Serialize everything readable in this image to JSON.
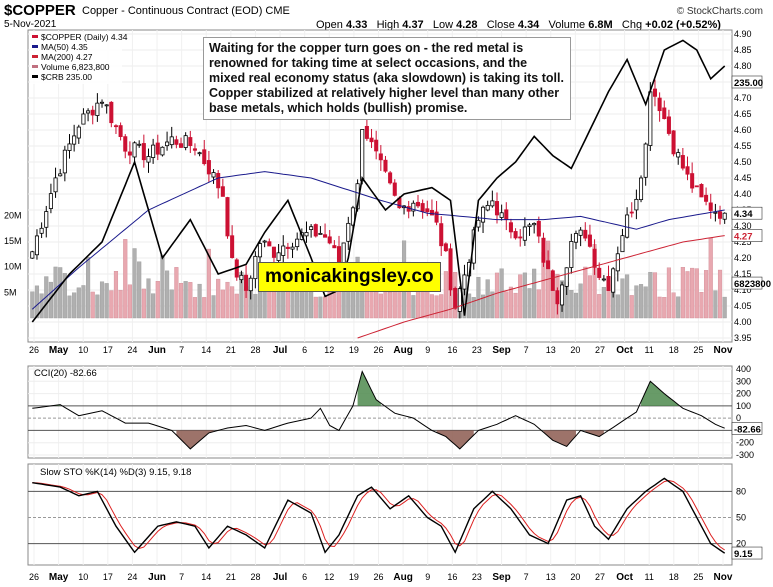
{
  "header": {
    "symbol": "$COPPER",
    "description": "Copper - Continuous Contract (EOD) CME",
    "date": "5-Nov-2021",
    "credit": "© StockCharts.com",
    "open_label": "Open",
    "open": "4.33",
    "high_label": "High",
    "high": "4.37",
    "low_label": "Low",
    "low": "4.28",
    "close_label": "Close",
    "close": "4.34",
    "volume_label": "Volume",
    "volume": "6.8M",
    "chg_label": "Chg",
    "chg": "+0.02 (+0.52%)"
  },
  "legend": {
    "copper": "$COPPER (Daily) 4.34",
    "ma50": "MA(50) 4.35",
    "ma200": "MA(200) 4.27",
    "volume": "Volume 6,823,800",
    "crb": "$CRB 235.00"
  },
  "annotation": "Waiting for the copper turn goes on - the red metal is renowned for taking time at select occasions, and the mixed real economy status (aka slowdown) is taking its toll. Copper stabilized at relatively higher level than many other base metals, which holds (bullish) promise.",
  "watermark": "monicakingsley.co",
  "colors": {
    "up": "#000000",
    "down": "#cc1133",
    "ma50": "#1a1a8c",
    "ma200": "#cc2233",
    "crb": "#000000",
    "vol_up": "#b0b0b0",
    "vol_down": "#e8a8b0",
    "cci_fill": "#4d8a4d",
    "cci_neg_fill": "#8c5a50",
    "sto_k": "#000000",
    "sto_d": "#dd2222"
  },
  "chart_data": [
    {
      "type": "candlestick",
      "title": "$COPPER (Daily) 4.34",
      "y_range": [
        3.95,
        4.9
      ],
      "y_ticks": [
        "4.90",
        "4.85",
        "4.80",
        "4.75",
        "4.70",
        "4.65",
        "4.60",
        "4.55",
        "4.50",
        "4.45",
        "4.40",
        "4.35",
        "4.30",
        "4.25",
        "4.20",
        "4.15",
        "4.10",
        "4.05",
        "4.00",
        "3.95"
      ],
      "last_labels": {
        "close": "4.34",
        "ma200": "4.27",
        "crb": "235.00"
      },
      "x_labels": [
        "26",
        "May",
        "10",
        "17",
        "24",
        "Jun",
        "7",
        "14",
        "21",
        "28",
        "Jul",
        "6",
        "12",
        "19",
        "26",
        "Aug",
        "9",
        "16",
        "23",
        "Sep",
        "7",
        "13",
        "20",
        "27",
        "Oct",
        "11",
        "18",
        "25",
        "Nov"
      ],
      "close_anchors": [
        [
          0,
          4.22
        ],
        [
          5,
          4.45
        ],
        [
          10,
          4.62
        ],
        [
          15,
          4.7
        ],
        [
          20,
          4.55
        ],
        [
          25,
          4.52
        ],
        [
          30,
          4.57
        ],
        [
          35,
          4.55
        ],
        [
          38,
          4.48
        ],
        [
          41,
          4.4
        ],
        [
          43,
          4.18
        ],
        [
          46,
          4.1
        ],
        [
          49,
          4.25
        ],
        [
          52,
          4.22
        ],
        [
          55,
          4.25
        ],
        [
          58,
          4.27
        ],
        [
          62,
          4.28
        ],
        [
          64,
          4.25
        ],
        [
          66,
          4.18
        ],
        [
          68,
          4.32
        ],
        [
          70,
          4.42
        ],
        [
          71,
          4.62
        ],
        [
          73,
          4.55
        ],
        [
          76,
          4.45
        ],
        [
          79,
          4.35
        ],
        [
          82,
          4.38
        ],
        [
          85,
          4.35
        ],
        [
          87,
          4.3
        ],
        [
          89,
          4.2
        ],
        [
          91,
          4.05
        ],
        [
          93,
          4.15
        ],
        [
          96,
          4.32
        ],
        [
          99,
          4.38
        ],
        [
          102,
          4.3
        ],
        [
          105,
          4.28
        ],
        [
          108,
          4.3
        ],
        [
          111,
          4.15
        ],
        [
          113,
          4.08
        ],
        [
          116,
          4.25
        ],
        [
          119,
          4.28
        ],
        [
          122,
          4.15
        ],
        [
          124,
          4.12
        ],
        [
          127,
          4.28
        ],
        [
          130,
          4.4
        ],
        [
          132,
          4.55
        ],
        [
          133,
          4.74
        ],
        [
          135,
          4.68
        ],
        [
          138,
          4.55
        ],
        [
          141,
          4.45
        ],
        [
          144,
          4.38
        ],
        [
          147,
          4.35
        ],
        [
          149,
          4.34
        ]
      ],
      "ma50_anchors": [
        [
          0,
          4.04
        ],
        [
          10,
          4.17
        ],
        [
          25,
          4.35
        ],
        [
          40,
          4.45
        ],
        [
          50,
          4.47
        ],
        [
          60,
          4.45
        ],
        [
          75,
          4.38
        ],
        [
          85,
          4.34
        ],
        [
          100,
          4.32
        ],
        [
          110,
          4.32
        ],
        [
          118,
          4.33
        ],
        [
          124,
          4.31
        ],
        [
          130,
          4.29
        ],
        [
          137,
          4.32
        ],
        [
          149,
          4.35
        ]
      ],
      "ma200_anchors": [
        [
          70,
          3.95
        ],
        [
          80,
          4.0
        ],
        [
          90,
          4.04
        ],
        [
          100,
          4.09
        ],
        [
          110,
          4.13
        ],
        [
          120,
          4.17
        ],
        [
          130,
          4.21
        ],
        [
          140,
          4.25
        ],
        [
          149,
          4.27
        ]
      ],
      "crb_anchors": [
        [
          0,
          4.0
        ],
        [
          8,
          4.15
        ],
        [
          15,
          4.25
        ],
        [
          22,
          4.5
        ],
        [
          28,
          4.2
        ],
        [
          34,
          4.32
        ],
        [
          40,
          4.15
        ],
        [
          46,
          4.18
        ],
        [
          50,
          4.28
        ],
        [
          55,
          4.38
        ],
        [
          60,
          4.2
        ],
        [
          63,
          4.08
        ],
        [
          66,
          4.1
        ],
        [
          68,
          4.2
        ],
        [
          71,
          4.45
        ],
        [
          76,
          4.35
        ],
        [
          80,
          4.4
        ],
        [
          86,
          4.42
        ],
        [
          90,
          4.38
        ],
        [
          93,
          4.02
        ],
        [
          96,
          4.38
        ],
        [
          100,
          4.45
        ],
        [
          104,
          4.5
        ],
        [
          108,
          4.58
        ],
        [
          112,
          4.52
        ],
        [
          116,
          4.48
        ],
        [
          120,
          4.6
        ],
        [
          124,
          4.72
        ],
        [
          128,
          4.82
        ],
        [
          132,
          4.68
        ],
        [
          136,
          4.85
        ],
        [
          140,
          4.88
        ],
        [
          143,
          4.85
        ],
        [
          146,
          4.76
        ],
        [
          149,
          4.8
        ]
      ]
    },
    {
      "type": "bar",
      "title": "Volume 6,823,800",
      "y_labels": [
        "20M",
        "15M",
        "10M",
        "5M"
      ],
      "y_values": [
        20,
        15,
        10,
        5
      ],
      "last_label": "6823800",
      "last_value": 6.8
    },
    {
      "type": "line",
      "title": "CCI(20) -82.66",
      "y_range": [
        -300,
        400
      ],
      "y_ticks": [
        "400",
        "300",
        "200",
        "100",
        "0",
        "-100",
        "-200",
        "-300"
      ],
      "last_label": "-82.66",
      "anchors": [
        [
          0,
          80
        ],
        [
          6,
          110
        ],
        [
          10,
          20
        ],
        [
          15,
          60
        ],
        [
          20,
          -40
        ],
        [
          25,
          -40
        ],
        [
          30,
          -100
        ],
        [
          34,
          -250
        ],
        [
          38,
          -120
        ],
        [
          42,
          -80
        ],
        [
          46,
          -60
        ],
        [
          50,
          -100
        ],
        [
          55,
          -40
        ],
        [
          60,
          0
        ],
        [
          62,
          80
        ],
        [
          64,
          -60
        ],
        [
          66,
          -100
        ],
        [
          69,
          100
        ],
        [
          71,
          380
        ],
        [
          74,
          150
        ],
        [
          78,
          40
        ],
        [
          82,
          0
        ],
        [
          86,
          -100
        ],
        [
          89,
          -150
        ],
        [
          92,
          -250
        ],
        [
          96,
          -100
        ],
        [
          100,
          -50
        ],
        [
          104,
          20
        ],
        [
          108,
          -50
        ],
        [
          112,
          -180
        ],
        [
          115,
          -230
        ],
        [
          118,
          -100
        ],
        [
          122,
          -150
        ],
        [
          126,
          -50
        ],
        [
          130,
          50
        ],
        [
          133,
          300
        ],
        [
          136,
          200
        ],
        [
          140,
          80
        ],
        [
          144,
          20
        ],
        [
          147,
          -50
        ],
        [
          149,
          -82
        ]
      ]
    },
    {
      "type": "line",
      "title": "Slow STO %K(14) %D(3) 9.15, 9.18",
      "series": [
        {
          "name": "%K",
          "last": 9.15
        },
        {
          "name": "%D",
          "last": 9.18
        }
      ],
      "y_range": [
        0,
        100
      ],
      "y_ticks": [
        "80",
        "50",
        "20"
      ],
      "last_label": "9.15",
      "k_anchors": [
        [
          0,
          90
        ],
        [
          6,
          85
        ],
        [
          10,
          75
        ],
        [
          14,
          80
        ],
        [
          18,
          40
        ],
        [
          22,
          10
        ],
        [
          27,
          40
        ],
        [
          31,
          45
        ],
        [
          35,
          40
        ],
        [
          38,
          15
        ],
        [
          42,
          40
        ],
        [
          46,
          30
        ],
        [
          50,
          15
        ],
        [
          55,
          70
        ],
        [
          60,
          55
        ],
        [
          63,
          10
        ],
        [
          66,
          30
        ],
        [
          70,
          75
        ],
        [
          73,
          85
        ],
        [
          77,
          60
        ],
        [
          81,
          75
        ],
        [
          85,
          50
        ],
        [
          88,
          40
        ],
        [
          91,
          10
        ],
        [
          95,
          60
        ],
        [
          99,
          80
        ],
        [
          103,
          60
        ],
        [
          107,
          30
        ],
        [
          111,
          20
        ],
        [
          115,
          70
        ],
        [
          118,
          75
        ],
        [
          121,
          40
        ],
        [
          124,
          25
        ],
        [
          128,
          60
        ],
        [
          132,
          80
        ],
        [
          136,
          95
        ],
        [
          140,
          80
        ],
        [
          143,
          50
        ],
        [
          146,
          20
        ],
        [
          149,
          9
        ]
      ]
    }
  ]
}
